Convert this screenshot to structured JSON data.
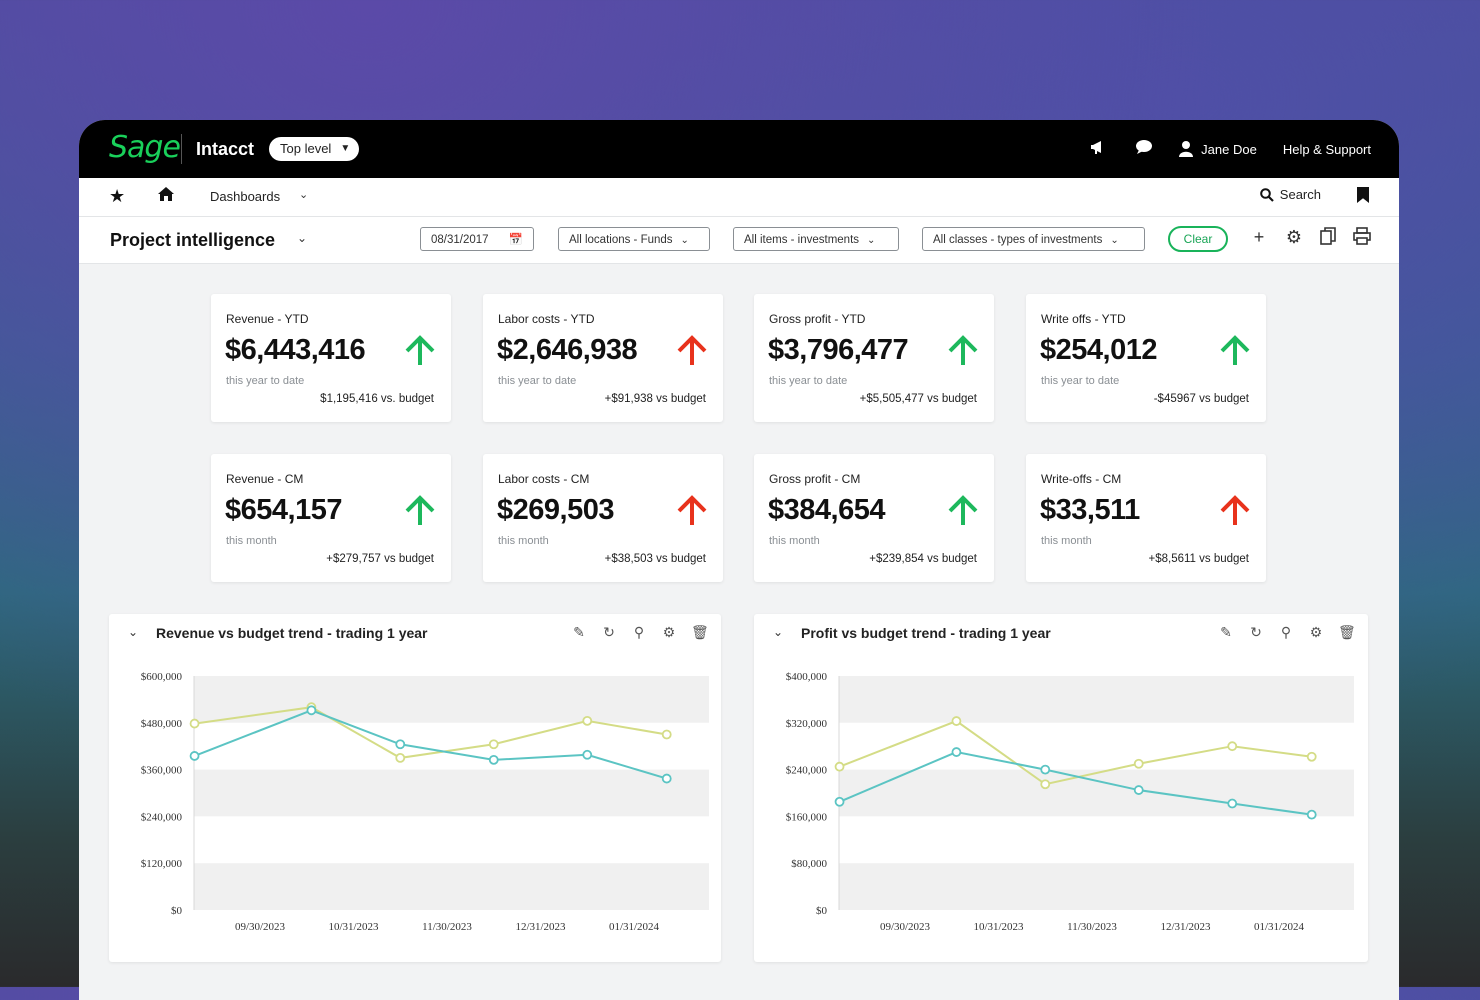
{
  "topbar": {
    "logo": "Sage",
    "product": "Intacct",
    "level": "Top level",
    "user": "Jane Doe",
    "help": "Help & Support"
  },
  "nav": {
    "dashboards": "Dashboards",
    "search": "Search"
  },
  "filters": {
    "page_title": "Project intelligence",
    "date": "08/31/2017",
    "locations": "All locations - Funds",
    "items": "All items - investments",
    "classes": "All classes - types of investments",
    "clear": "Clear"
  },
  "cards": [
    {
      "label": "Revenue - YTD",
      "value": "$6,443,416",
      "sub": "this year to date",
      "vs": "$1,195,416 vs. budget",
      "trend": "up-green"
    },
    {
      "label": "Labor costs - YTD",
      "value": "$2,646,938",
      "sub": "this year to date",
      "vs": "+$91,938 vs budget",
      "trend": "up-red"
    },
    {
      "label": "Gross profit - YTD",
      "value": "$3,796,477",
      "sub": "this year to date",
      "vs": "+$5,505,477 vs budget",
      "trend": "up-green"
    },
    {
      "label": "Write offs - YTD",
      "value": "$254,012",
      "sub": "this year to date",
      "vs": "-$45967 vs budget",
      "trend": "up-green"
    },
    {
      "label": "Revenue - CM",
      "value": "$654,157",
      "sub": "this month",
      "vs": "+$279,757 vs budget",
      "trend": "up-green"
    },
    {
      "label": "Labor costs - CM",
      "value": "$269,503",
      "sub": "this month",
      "vs": "+$38,503 vs budget",
      "trend": "up-red"
    },
    {
      "label": "Gross profit - CM",
      "value": "$384,654",
      "sub": "this month",
      "vs": "+$239,854 vs budget",
      "trend": "up-green"
    },
    {
      "label": "Write-offs - CM",
      "value": "$33,511",
      "sub": "this month",
      "vs": "+$8,5611 vs budget",
      "trend": "up-red"
    }
  ],
  "colors": {
    "brand": "#19d05a",
    "up_green": "#1db85c",
    "up_red": "#e8321c",
    "series_yellow": "#d4dc86",
    "series_teal": "#5bc4c3"
  },
  "chart_data": [
    {
      "type": "line",
      "title": "Revenue vs budget trend - trading 1 year",
      "x": [
        "09/30/2023",
        "10/31/2023",
        "11/30/2023",
        "12/31/2023",
        "01/31/2024"
      ],
      "yticks": [
        "$600,000",
        "$480,000",
        "$360,000",
        "$240,000",
        "$120,000",
        "$0"
      ],
      "ylim": [
        0,
        600000
      ],
      "series": [
        {
          "color": "#d4dc86",
          "points": [
            [
              -0.7,
              478000
            ],
            [
              0.55,
              520000
            ],
            [
              1.5,
              390000
            ],
            [
              2.5,
              425000
            ],
            [
              3.5,
              485000
            ],
            [
              4.35,
              450000
            ]
          ]
        },
        {
          "color": "#5bc4c3",
          "points": [
            [
              -0.7,
              395000
            ],
            [
              0.55,
              512000
            ],
            [
              1.5,
              425000
            ],
            [
              2.5,
              385000
            ],
            [
              3.5,
              398000
            ],
            [
              4.35,
              337000
            ]
          ]
        }
      ]
    },
    {
      "type": "line",
      "title": "Profit vs budget trend - trading 1 year",
      "x": [
        "09/30/2023",
        "10/31/2023",
        "11/30/2023",
        "12/31/2023",
        "01/31/2024"
      ],
      "yticks": [
        "$400,000",
        "$320,000",
        "$240,000",
        "$160,000",
        "$80,000",
        "$0"
      ],
      "ylim": [
        0,
        400000
      ],
      "series": [
        {
          "color": "#d4dc86",
          "points": [
            [
              -0.7,
              245000
            ],
            [
              0.55,
              323000
            ],
            [
              1.5,
              215000
            ],
            [
              2.5,
              250000
            ],
            [
              3.5,
              280000
            ],
            [
              4.35,
              262000
            ]
          ]
        },
        {
          "color": "#5bc4c3",
          "points": [
            [
              -0.7,
              185000
            ],
            [
              0.55,
              270000
            ],
            [
              1.5,
              240000
            ],
            [
              2.5,
              205000
            ],
            [
              3.5,
              182000
            ],
            [
              4.35,
              163000
            ]
          ]
        }
      ]
    }
  ]
}
